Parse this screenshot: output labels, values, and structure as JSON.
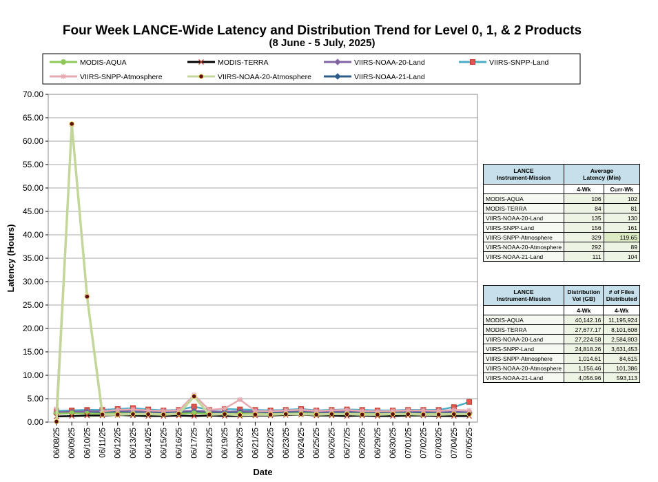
{
  "title": "Four Week LANCE-Wide Latency and Distribution Trend for Level 0, 1, & 2 Products",
  "subtitle": "(8  June   - 5  July,  2025)",
  "chart_data": {
    "type": "line",
    "ylabel": "Latency (Hours)",
    "xlabel": "Date",
    "ylim": [
      0,
      70
    ],
    "yticks": [
      "0.00",
      "5.00",
      "10.00",
      "15.00",
      "20.00",
      "25.00",
      "30.00",
      "35.00",
      "40.00",
      "45.00",
      "50.00",
      "55.00",
      "60.00",
      "65.00",
      "70.00"
    ],
    "grid": true,
    "legend_position": "top",
    "categories": [
      "06/08/25",
      "06/09/25",
      "06/10/25",
      "06/11/25",
      "06/12/25",
      "06/13/25",
      "06/14/25",
      "06/15/25",
      "06/16/25",
      "06/17/25",
      "06/18/25",
      "06/19/25",
      "06/20/25",
      "06/21/25",
      "06/22/25",
      "06/23/25",
      "06/24/25",
      "06/25/25",
      "06/26/25",
      "06/27/25",
      "06/28/25",
      "06/29/25",
      "06/30/25",
      "07/01/25",
      "07/02/25",
      "07/03/25",
      "07/04/25",
      "07/05/25"
    ],
    "series": [
      {
        "name": "MODIS-AQUA",
        "color": "#8fc95a",
        "marker": "circle",
        "values": [
          1.8,
          1.9,
          1.8,
          1.8,
          1.9,
          1.8,
          1.8,
          1.7,
          1.8,
          1.9,
          1.8,
          1.7,
          1.8,
          1.8,
          1.7,
          1.8,
          1.9,
          1.8,
          1.7,
          1.8,
          1.8,
          1.7,
          1.8,
          1.8,
          1.7,
          1.8,
          1.7,
          1.7
        ]
      },
      {
        "name": "MODIS-TERRA",
        "color": "#000000",
        "marker": "x",
        "values": [
          1.2,
          1.3,
          1.4,
          1.4,
          1.5,
          1.4,
          1.3,
          1.3,
          1.4,
          1.3,
          1.4,
          1.3,
          1.3,
          1.4,
          1.4,
          1.5,
          1.6,
          1.4,
          1.4,
          1.3,
          1.4,
          1.3,
          1.3,
          1.4,
          1.4,
          1.3,
          1.3,
          1.3
        ]
      },
      {
        "name": "VIIRS-NOAA-20-Land",
        "color": "#8064a2",
        "marker": "diamond",
        "values": [
          2.1,
          2.2,
          2.3,
          2.3,
          2.4,
          2.3,
          2.2,
          2.2,
          2.3,
          2.4,
          2.3,
          2.2,
          2.3,
          2.3,
          2.2,
          2.3,
          2.4,
          2.2,
          2.2,
          2.3,
          2.2,
          2.2,
          2.1,
          2.2,
          2.2,
          2.1,
          2.2,
          2.1
        ]
      },
      {
        "name": "VIIRS-SNPP-Land",
        "color": "#4bacc6",
        "marker": "square",
        "values": [
          2.4,
          2.5,
          2.6,
          2.6,
          2.8,
          3.0,
          2.7,
          2.5,
          2.6,
          3.3,
          2.6,
          2.8,
          2.7,
          2.6,
          2.5,
          2.6,
          2.8,
          2.5,
          2.6,
          2.7,
          2.6,
          2.5,
          2.5,
          2.6,
          2.6,
          2.6,
          3.2,
          4.3
        ]
      },
      {
        "name": "VIIRS-SNPP-Atmosphere",
        "color": "#e6a9b0",
        "marker": "star",
        "values": [
          2.8,
          63.6,
          26.9,
          2.3,
          2.6,
          2.7,
          2.5,
          2.4,
          2.5,
          5.8,
          2.6,
          2.9,
          4.8,
          2.4,
          2.3,
          2.5,
          2.6,
          2.4,
          2.5,
          2.6,
          2.4,
          2.3,
          2.4,
          2.5,
          2.5,
          2.4,
          2.6,
          2.5
        ]
      },
      {
        "name": "VIIRS-NOAA-20-Atmosphere",
        "color": "#c4d79b",
        "marker": "dot",
        "values": [
          0.1,
          63.7,
          26.8,
          1.6,
          1.6,
          1.7,
          1.7,
          1.6,
          1.8,
          5.5,
          1.6,
          1.7,
          1.5,
          1.6,
          1.6,
          1.7,
          1.7,
          1.6,
          1.7,
          1.7,
          1.6,
          1.6,
          1.7,
          1.7,
          1.6,
          1.6,
          1.7,
          1.7
        ]
      },
      {
        "name": "VIIRS-NOAA-21-Land",
        "color": "#2e5c8a",
        "marker": "diamond",
        "values": [
          1.8,
          1.9,
          1.9,
          2.0,
          2.1,
          2.0,
          1.9,
          1.9,
          2.0,
          2.1,
          2.0,
          1.9,
          2.0,
          1.9,
          1.9,
          2.0,
          2.1,
          1.9,
          1.9,
          2.0,
          1.9,
          1.9,
          1.9,
          2.0,
          1.9,
          1.9,
          1.9,
          1.9
        ]
      }
    ]
  },
  "latency_table": {
    "head": {
      "col1": "LANCE\nInstrument-Mission",
      "col2": "Average\nLatency (Min)",
      "sub1": "4-Wk",
      "sub2": "Curr-Wk"
    },
    "rows": [
      {
        "name": "MODIS-AQUA",
        "wk4": "106",
        "curr": "102"
      },
      {
        "name": "MODIS-TERRA",
        "wk4": "84",
        "curr": "81"
      },
      {
        "name": "VIIRS-NOAA-20-Land",
        "wk4": "135",
        "curr": "130"
      },
      {
        "name": "VIIRS-SNPP-Land",
        "wk4": "156",
        "curr": "161"
      },
      {
        "name": "VIIRS-SNPP-Atmosphere",
        "wk4": "329",
        "curr": "119.65"
      },
      {
        "name": "VIIRS-NOAA-20-Atmosphere",
        "wk4": "292",
        "curr": "89"
      },
      {
        "name": "VIIRS-NOAA-21-Land",
        "wk4": "111",
        "curr": "104"
      }
    ]
  },
  "distribution_table": {
    "head": {
      "col1": "LANCE\nInstrument-Mission",
      "col2": "Distribution\nVol (GB)",
      "col3": "# of Files\nDistributed",
      "sub1": "4-Wk",
      "sub2": "4-Wk"
    },
    "rows": [
      {
        "name": "MODIS-AQUA",
        "vol": "40,142.16",
        "files": "11,195,924"
      },
      {
        "name": "MODIS-TERRA",
        "vol": "27,677.17",
        "files": "8,101,608"
      },
      {
        "name": "VIIRS-NOAA-20-Land",
        "vol": "27,224.58",
        "files": "2,584,803"
      },
      {
        "name": "VIIRS-SNPP-Land",
        "vol": "24,818.26",
        "files": "3,631,453"
      },
      {
        "name": "VIIRS-SNPP-Atmosphere",
        "vol": "1,014.61",
        "files": "84,615"
      },
      {
        "name": "VIIRS-NOAA-20-Atmosphere",
        "vol": "1,156.46",
        "files": "101,386"
      },
      {
        "name": "VIIRS-NOAA-21-Land",
        "vol": "4,056.96",
        "files": "593,113"
      }
    ]
  }
}
